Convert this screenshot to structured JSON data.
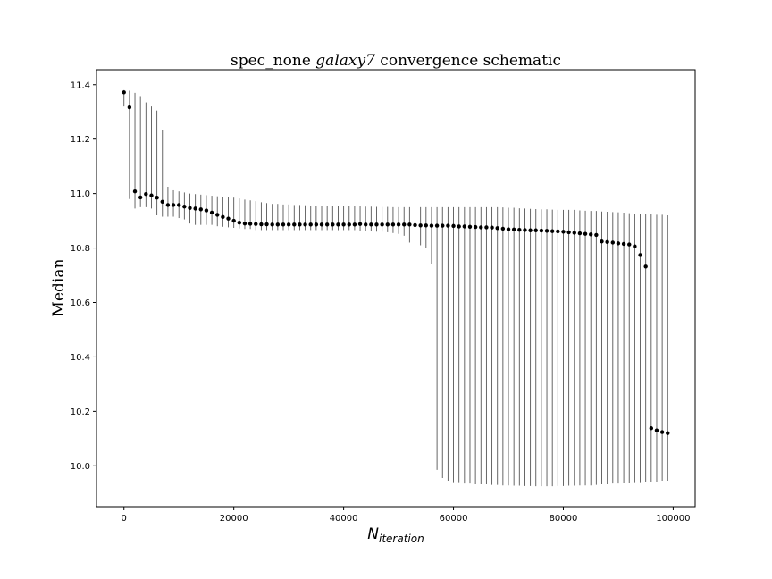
{
  "chart_data": {
    "type": "scatter",
    "title_prefix": "spec_none ",
    "title_italic": "galaxy7",
    "title_suffix": " convergence schematic",
    "xlabel_main": "N",
    "xlabel_sub": "iteration",
    "ylabel": "Median",
    "xlim": [
      -5000,
      104000
    ],
    "ylim": [
      9.85,
      11.455
    ],
    "xticks": [
      0,
      20000,
      40000,
      60000,
      80000,
      100000
    ],
    "xtick_labels": [
      "0",
      "20000",
      "40000",
      "60000",
      "80000",
      "100000"
    ],
    "yticks": [
      10.0,
      10.2,
      10.4,
      10.6,
      10.8,
      11.0,
      11.2,
      11.4
    ],
    "ytick_labels": [
      "10.0",
      "10.2",
      "10.4",
      "10.6",
      "10.8",
      "11.0",
      "11.2",
      "11.4"
    ],
    "grid": false,
    "colors": {
      "marker": "#000000",
      "errorbar": "#555555"
    },
    "series": [
      {
        "x": [
          0,
          1000,
          2000,
          3000,
          4000,
          5000,
          6000,
          7000,
          8000,
          9000,
          10000,
          11000,
          12000,
          13000,
          14000,
          15000,
          16000,
          17000,
          18000,
          19000,
          20000,
          21000,
          22000,
          23000,
          24000,
          25000,
          26000,
          27000,
          28000,
          29000,
          30000,
          31000,
          32000,
          33000,
          34000,
          35000,
          36000,
          37000,
          38000,
          39000,
          40000,
          41000,
          42000,
          43000,
          44000,
          45000,
          46000,
          47000,
          48000,
          49000,
          50000,
          51000,
          52000,
          53000,
          54000,
          55000,
          56000,
          57000,
          58000,
          59000,
          60000,
          61000,
          62000,
          63000,
          64000,
          65000,
          66000,
          67000,
          68000,
          69000,
          70000,
          71000,
          72000,
          73000,
          74000,
          75000,
          76000,
          77000,
          78000,
          79000,
          80000,
          81000,
          82000,
          83000,
          84000,
          85000,
          86000,
          87000,
          88000,
          89000,
          90000,
          91000,
          92000,
          93000,
          94000,
          95000,
          96000,
          97000,
          98000,
          99000
        ],
        "y": [
          11.372,
          11.317,
          11.008,
          10.986,
          10.998,
          10.993,
          10.985,
          10.97,
          10.958,
          10.958,
          10.958,
          10.952,
          10.947,
          10.945,
          10.942,
          10.938,
          10.93,
          10.922,
          10.914,
          10.908,
          10.9,
          10.893,
          10.89,
          10.889,
          10.888,
          10.887,
          10.887,
          10.886,
          10.886,
          10.886,
          10.886,
          10.886,
          10.886,
          10.886,
          10.886,
          10.886,
          10.886,
          10.886,
          10.886,
          10.886,
          10.886,
          10.886,
          10.886,
          10.888,
          10.886,
          10.886,
          10.886,
          10.886,
          10.886,
          10.886,
          10.886,
          10.886,
          10.886,
          10.884,
          10.883,
          10.883,
          10.882,
          10.882,
          10.882,
          10.882,
          10.881,
          10.879,
          10.879,
          10.878,
          10.877,
          10.876,
          10.876,
          10.875,
          10.873,
          10.871,
          10.869,
          10.868,
          10.867,
          10.866,
          10.865,
          10.865,
          10.864,
          10.863,
          10.862,
          10.861,
          10.86,
          10.858,
          10.856,
          10.854,
          10.852,
          10.85,
          10.848,
          10.824,
          10.822,
          10.82,
          10.817,
          10.815,
          10.813,
          10.806,
          10.774,
          10.732,
          10.138,
          10.13,
          10.124,
          10.12
        ],
        "ylo": [
          11.32,
          10.98,
          10.945,
          10.95,
          10.95,
          10.945,
          10.92,
          10.915,
          10.915,
          10.915,
          10.91,
          10.905,
          10.89,
          10.885,
          10.885,
          10.885,
          10.885,
          10.88,
          10.878,
          10.876,
          10.874,
          10.872,
          10.87,
          10.87,
          10.866,
          10.866,
          10.866,
          10.866,
          10.866,
          10.866,
          10.866,
          10.866,
          10.866,
          10.866,
          10.866,
          10.866,
          10.866,
          10.866,
          10.866,
          10.866,
          10.866,
          10.866,
          10.866,
          10.864,
          10.862,
          10.862,
          10.86,
          10.86,
          10.858,
          10.855,
          10.852,
          10.845,
          10.82,
          10.815,
          10.81,
          10.8,
          10.74,
          9.985,
          9.955,
          9.945,
          9.94,
          9.94,
          9.935,
          9.935,
          9.932,
          9.932,
          9.932,
          9.93,
          9.93,
          9.928,
          9.928,
          9.927,
          9.927,
          9.926,
          9.926,
          9.925,
          9.925,
          9.925,
          9.925,
          9.926,
          9.926,
          9.927,
          9.927,
          9.928,
          9.928,
          9.928,
          9.93,
          9.932,
          9.932,
          9.935,
          9.935,
          9.937,
          9.937,
          9.94,
          9.94,
          9.942,
          9.942,
          9.942,
          9.945,
          9.945
        ],
        "yhi": [
          11.38,
          11.378,
          11.37,
          11.355,
          11.335,
          11.32,
          11.305,
          11.235,
          11.025,
          11.012,
          11.008,
          11.004,
          11.0,
          10.998,
          10.996,
          10.994,
          10.992,
          10.99,
          10.988,
          10.986,
          10.985,
          10.982,
          10.978,
          10.975,
          10.972,
          10.968,
          10.965,
          10.962,
          10.962,
          10.96,
          10.96,
          10.958,
          10.958,
          10.957,
          10.956,
          10.955,
          10.955,
          10.954,
          10.954,
          10.954,
          10.953,
          10.953,
          10.953,
          10.953,
          10.952,
          10.952,
          10.951,
          10.951,
          10.951,
          10.95,
          10.95,
          10.95,
          10.95,
          10.95,
          10.95,
          10.95,
          10.95,
          10.95,
          10.95,
          10.95,
          10.95,
          10.95,
          10.95,
          10.95,
          10.95,
          10.95,
          10.95,
          10.95,
          10.95,
          10.949,
          10.948,
          10.948,
          10.946,
          10.945,
          10.944,
          10.943,
          10.942,
          10.942,
          10.941,
          10.94,
          10.94,
          10.94,
          10.94,
          10.938,
          10.937,
          10.936,
          10.936,
          10.934,
          10.933,
          10.932,
          10.931,
          10.93,
          10.928,
          10.926,
          10.925,
          10.925,
          10.924,
          10.922,
          10.922,
          10.92
        ]
      }
    ]
  }
}
